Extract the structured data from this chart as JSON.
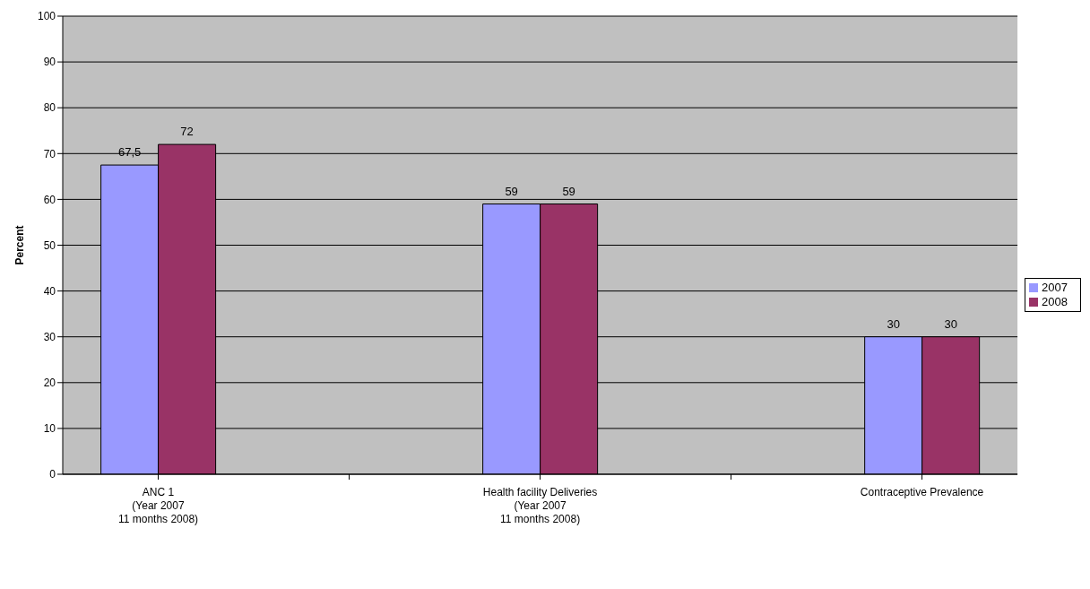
{
  "chart_data": {
    "type": "bar",
    "ylabel": "Percent",
    "categories": [
      "ANC 1\n(Year 2007\n11 months 2008)",
      null,
      "Health facility Deliveries\n(Year 2007\n11 months 2008)",
      null,
      "Contraceptive Prevalence"
    ],
    "series": [
      {
        "name": "2007",
        "color": "#9999ff",
        "values": [
          67.5,
          null,
          59,
          null,
          30
        ],
        "value_labels": [
          "67,5",
          null,
          "59",
          null,
          "30"
        ]
      },
      {
        "name": "2008",
        "color": "#993366",
        "values": [
          72,
          null,
          59,
          null,
          30
        ],
        "value_labels": [
          "72",
          null,
          "59",
          null,
          "30"
        ]
      }
    ],
    "ylim": [
      0,
      100
    ],
    "yticks": [
      0,
      10,
      20,
      30,
      40,
      50,
      60,
      70,
      80,
      90,
      100
    ],
    "grid": "y",
    "legend": "right"
  }
}
